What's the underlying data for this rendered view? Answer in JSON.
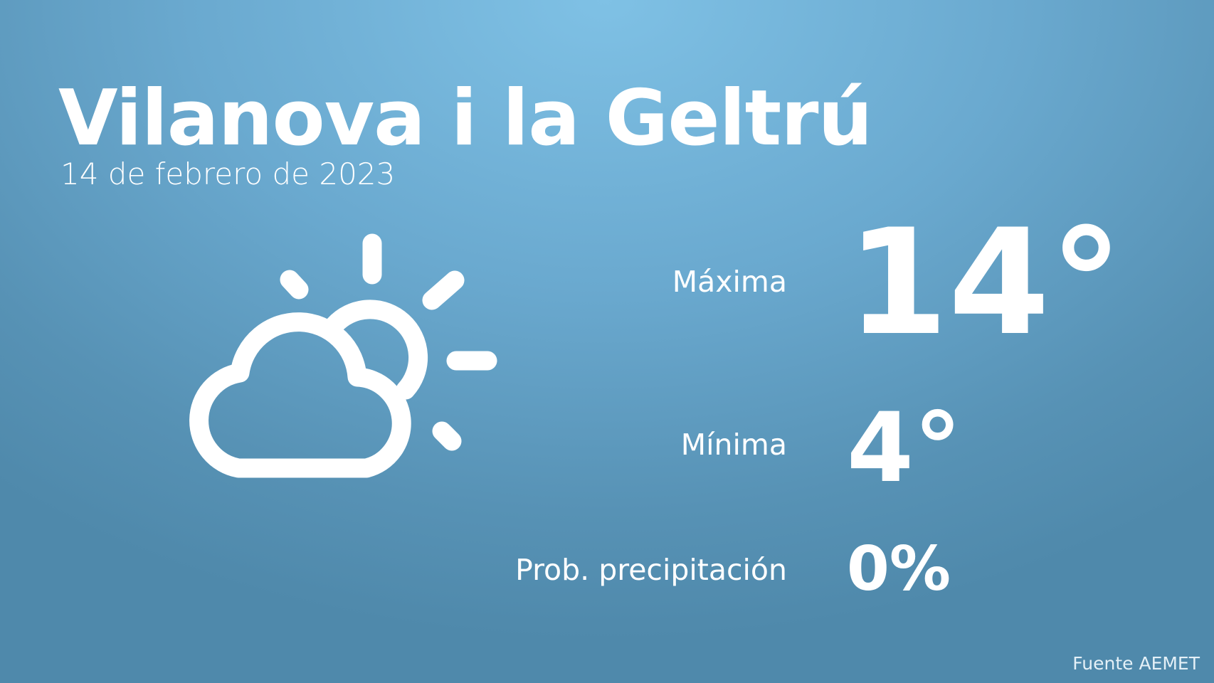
{
  "header": {
    "city": "Vilanova i la Geltrú",
    "date": "14 de febrero de 2023"
  },
  "weather": {
    "icon": "partly-cloudy-icon",
    "max_label": "Máxima",
    "max_value": "14°",
    "min_label": "Mínima",
    "min_value": "4°",
    "precip_label": "Prob. precipitación",
    "precip_value": "0%"
  },
  "footer": {
    "source": "Fuente AEMET"
  },
  "colors": {
    "background_top": "#7fc1e5",
    "background_bottom": "#4f89ab",
    "foreground": "#ffffff"
  }
}
